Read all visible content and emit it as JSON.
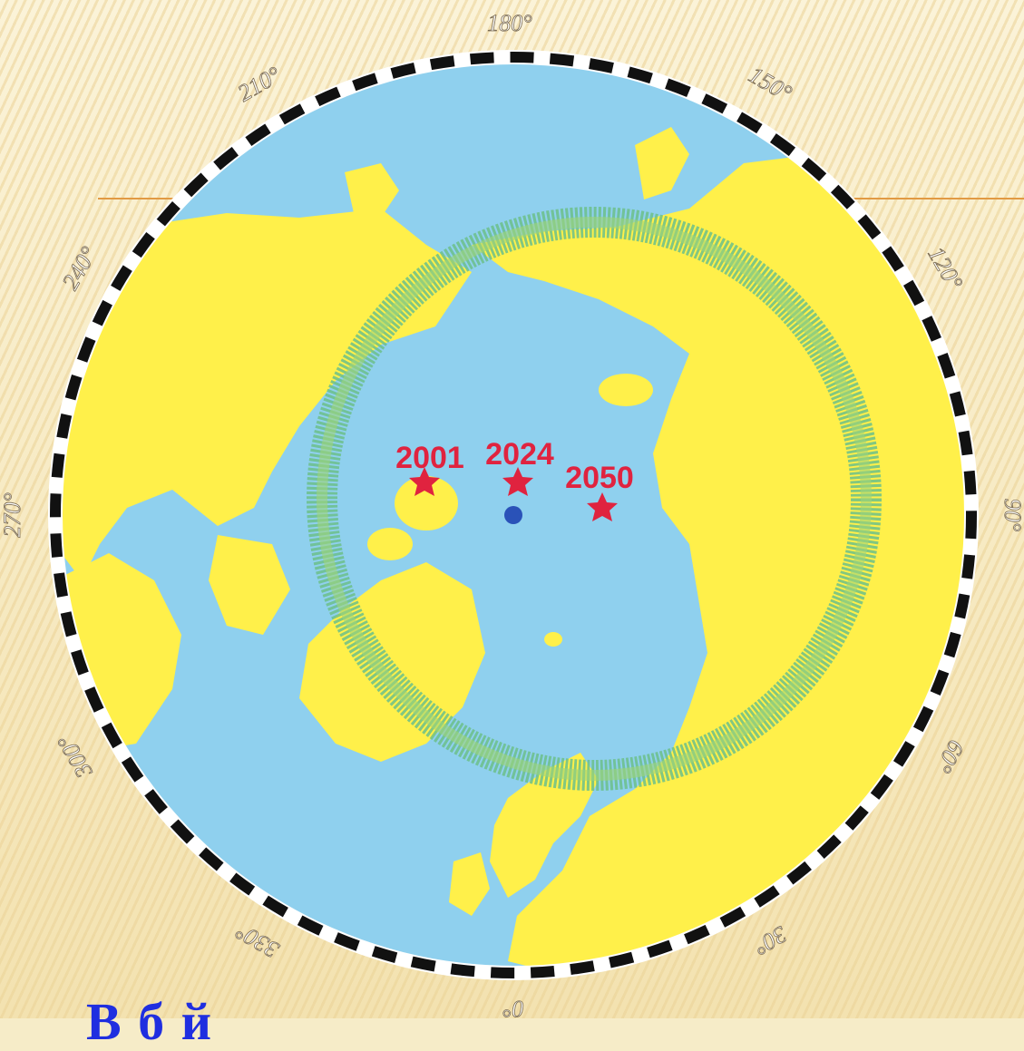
{
  "colors": {
    "accent": "#e29a43",
    "ocean": "#8fd0ee",
    "land": "#fff04a",
    "belt": "#6cc08a",
    "star": "#e0233f",
    "pole": "#2a52b8",
    "caption": "#1f2ee0"
  },
  "map": {
    "degree_labels": [
      "180°",
      "150°",
      "120°",
      "90°",
      "60°",
      "30°",
      "0°",
      "330°",
      "300°",
      "270°",
      "240°",
      "210°"
    ],
    "markers": [
      {
        "year": "2001"
      },
      {
        "year": "2024"
      },
      {
        "year": "2050"
      }
    ]
  },
  "caption": "В б       й"
}
